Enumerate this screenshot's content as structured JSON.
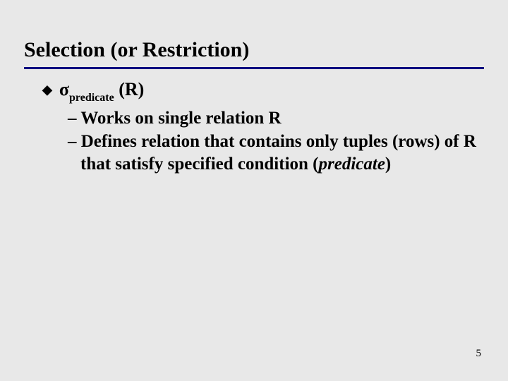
{
  "title": "Selection (or Restriction)",
  "underline_color": "#000080",
  "bullet": {
    "marker": "◆",
    "sigma": "σ",
    "subscript": "predicate",
    "after": " (R)"
  },
  "sub_items": [
    {
      "dash": "– ",
      "text": "Works on single relation R"
    },
    {
      "dash": "– ",
      "text_before": "Defines relation that contains only tuples (rows) of R that satisfy specified condition (",
      "italic": "predicate",
      "text_after": ")"
    }
  ],
  "page_number": "5"
}
